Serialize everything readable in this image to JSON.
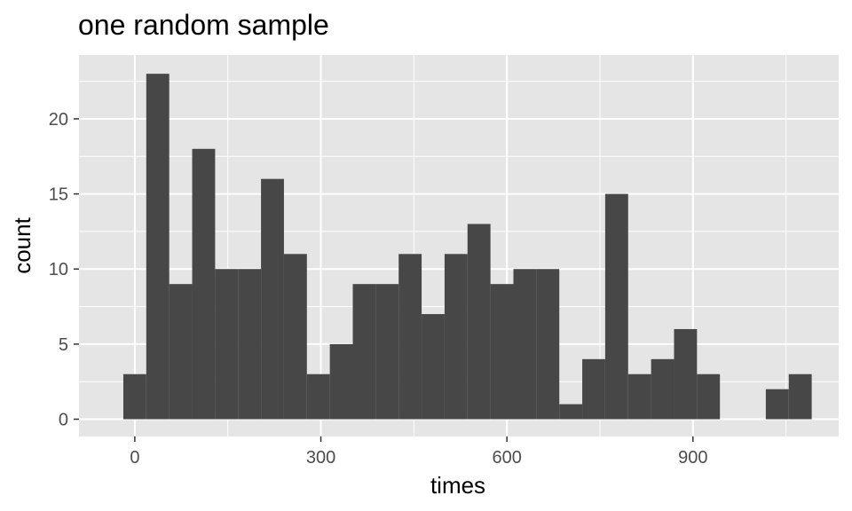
{
  "chart_data": {
    "type": "bar",
    "title": "one random sample",
    "xlabel": "times",
    "ylabel": "count",
    "xlim": [
      -90,
      1135
    ],
    "ylim": [
      -1.15,
      24.25
    ],
    "x_ticks": [
      0,
      300,
      600,
      900
    ],
    "x_tick_labels": [
      "0",
      "300",
      "600",
      "900"
    ],
    "y_ticks": [
      0,
      5,
      10,
      15,
      20
    ],
    "y_tick_labels": [
      "0",
      "5",
      "10",
      "15",
      "20"
    ],
    "grid": true,
    "legend": "none",
    "bin_width": 37,
    "bins": [
      {
        "x": 0,
        "count": 3
      },
      {
        "x": 37,
        "count": 23
      },
      {
        "x": 74,
        "count": 9
      },
      {
        "x": 111,
        "count": 18
      },
      {
        "x": 148,
        "count": 10
      },
      {
        "x": 185,
        "count": 10
      },
      {
        "x": 222,
        "count": 16
      },
      {
        "x": 259,
        "count": 11
      },
      {
        "x": 296,
        "count": 3
      },
      {
        "x": 333,
        "count": 5
      },
      {
        "x": 370,
        "count": 9
      },
      {
        "x": 407,
        "count": 9
      },
      {
        "x": 444,
        "count": 11
      },
      {
        "x": 481,
        "count": 7
      },
      {
        "x": 518,
        "count": 11
      },
      {
        "x": 555,
        "count": 13
      },
      {
        "x": 592,
        "count": 9
      },
      {
        "x": 629,
        "count": 10
      },
      {
        "x": 666,
        "count": 10
      },
      {
        "x": 703,
        "count": 1
      },
      {
        "x": 740,
        "count": 4
      },
      {
        "x": 777,
        "count": 15
      },
      {
        "x": 814,
        "count": 3
      },
      {
        "x": 851,
        "count": 4
      },
      {
        "x": 888,
        "count": 6
      },
      {
        "x": 925,
        "count": 3
      },
      {
        "x": 962,
        "count": 0
      },
      {
        "x": 999,
        "count": 0
      },
      {
        "x": 1036,
        "count": 2
      },
      {
        "x": 1073,
        "count": 3
      }
    ],
    "colors": {
      "panel_background": "#e5e5e5",
      "grid": "#ffffff",
      "bar_fill": "#474747",
      "tick_label": "#4d4d4d",
      "tick_mark": "#333333"
    }
  }
}
